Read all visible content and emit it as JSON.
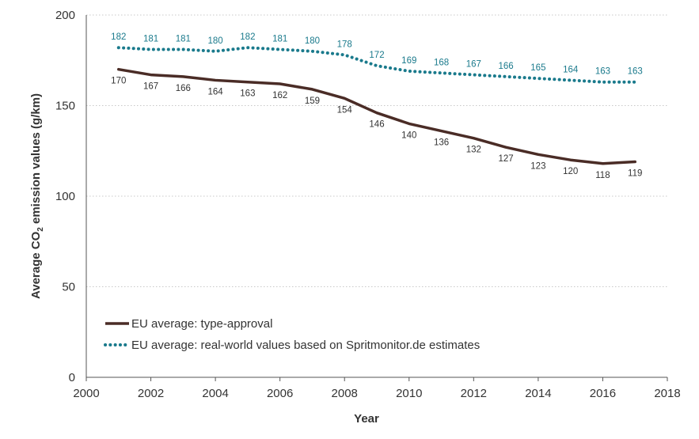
{
  "chart_data": {
    "type": "line",
    "xlabel": "Year",
    "ylabel_main": "Average CO",
    "ylabel_sub": "2",
    "ylabel_rest": " emission values (g/km)",
    "xlim": [
      2000,
      2018
    ],
    "ylim": [
      0,
      200
    ],
    "x_ticks": [
      "2000",
      "2002",
      "2004",
      "2006",
      "2008",
      "2010",
      "2012",
      "2014",
      "2016",
      "2018"
    ],
    "y_ticks": [
      "0",
      "50",
      "100",
      "150",
      "200"
    ],
    "grid": "horizontal dotted",
    "legend_position": "bottom-left",
    "x": [
      2001,
      2002,
      2003,
      2004,
      2005,
      2006,
      2007,
      2008,
      2009,
      2010,
      2011,
      2012,
      2013,
      2014,
      2015,
      2016,
      2017
    ],
    "series": [
      {
        "name": "EU average: type-approval",
        "color": "#4a2c26",
        "style": "solid",
        "values": [
          170,
          167,
          166,
          164,
          163,
          162,
          159,
          154,
          146,
          140,
          136,
          132,
          127,
          123,
          120,
          118,
          119
        ]
      },
      {
        "name": "EU average: real-world values based on Spritmonitor.de estimates",
        "color": "#1a7a8c",
        "style": "dotted",
        "values": [
          182,
          181,
          181,
          180,
          182,
          181,
          180,
          178,
          172,
          169,
          168,
          167,
          166,
          165,
          164,
          163,
          163
        ]
      }
    ]
  }
}
